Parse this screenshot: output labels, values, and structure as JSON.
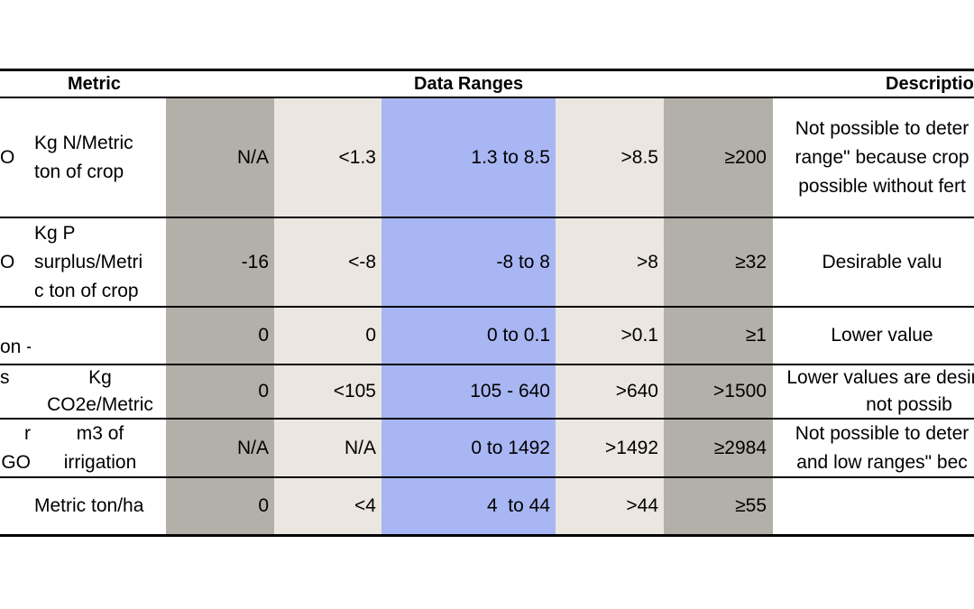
{
  "header": {
    "metric": "Metric",
    "data_ranges": "Data Ranges",
    "description": "Descriptio"
  },
  "colors": {
    "dark_gray": "#b3b0aa",
    "light_beige": "#ece6e0",
    "blue": "#a8b6f3"
  },
  "rows": [
    {
      "left_cut": "O",
      "unit": [
        "Kg N/Metric",
        "ton of crop"
      ],
      "values": [
        "N/A",
        "<1.3",
        "1.3 to 8.5",
        ">8.5",
        "≥200"
      ],
      "desc": [
        "Not possible to deter",
        "range\" because crop",
        "possible without fert"
      ]
    },
    {
      "left_cut": "O",
      "unit": [
        "Kg P",
        "surplus/Metri",
        "c ton of crop"
      ],
      "values": [
        "-16",
        "<-8",
        "-8 to 8",
        ">8",
        "≥32"
      ],
      "desc": [
        "Desirable valu"
      ]
    },
    {
      "left_cut": "on -",
      "unit": [],
      "values": [
        "0",
        "0",
        "0 to 0.1",
        ">0.1",
        "≥1"
      ],
      "desc": [
        "Lower value"
      ]
    },
    {
      "left_cut": "s",
      "unit": [
        "Kg",
        "CO2e/Metric"
      ],
      "values": [
        "0",
        "<105",
        "105 - 640",
        ">640",
        ">1500"
      ],
      "desc": [
        "Lower values are desir",
        "not possib"
      ]
    },
    {
      "left_cut": [
        "r",
        "GO"
      ],
      "unit": [
        "m3 of",
        "irrigation"
      ],
      "values": [
        "N/A",
        "N/A",
        "0 to 1492",
        ">1492",
        "≥2984"
      ],
      "desc": [
        "Not possible to deter",
        "and low ranges\" bec"
      ]
    },
    {
      "left_cut": "",
      "unit": [
        "Metric ton/ha"
      ],
      "values": [
        "0",
        "<4",
        "4  to 44",
        ">44",
        "≥55"
      ],
      "desc": []
    }
  ]
}
